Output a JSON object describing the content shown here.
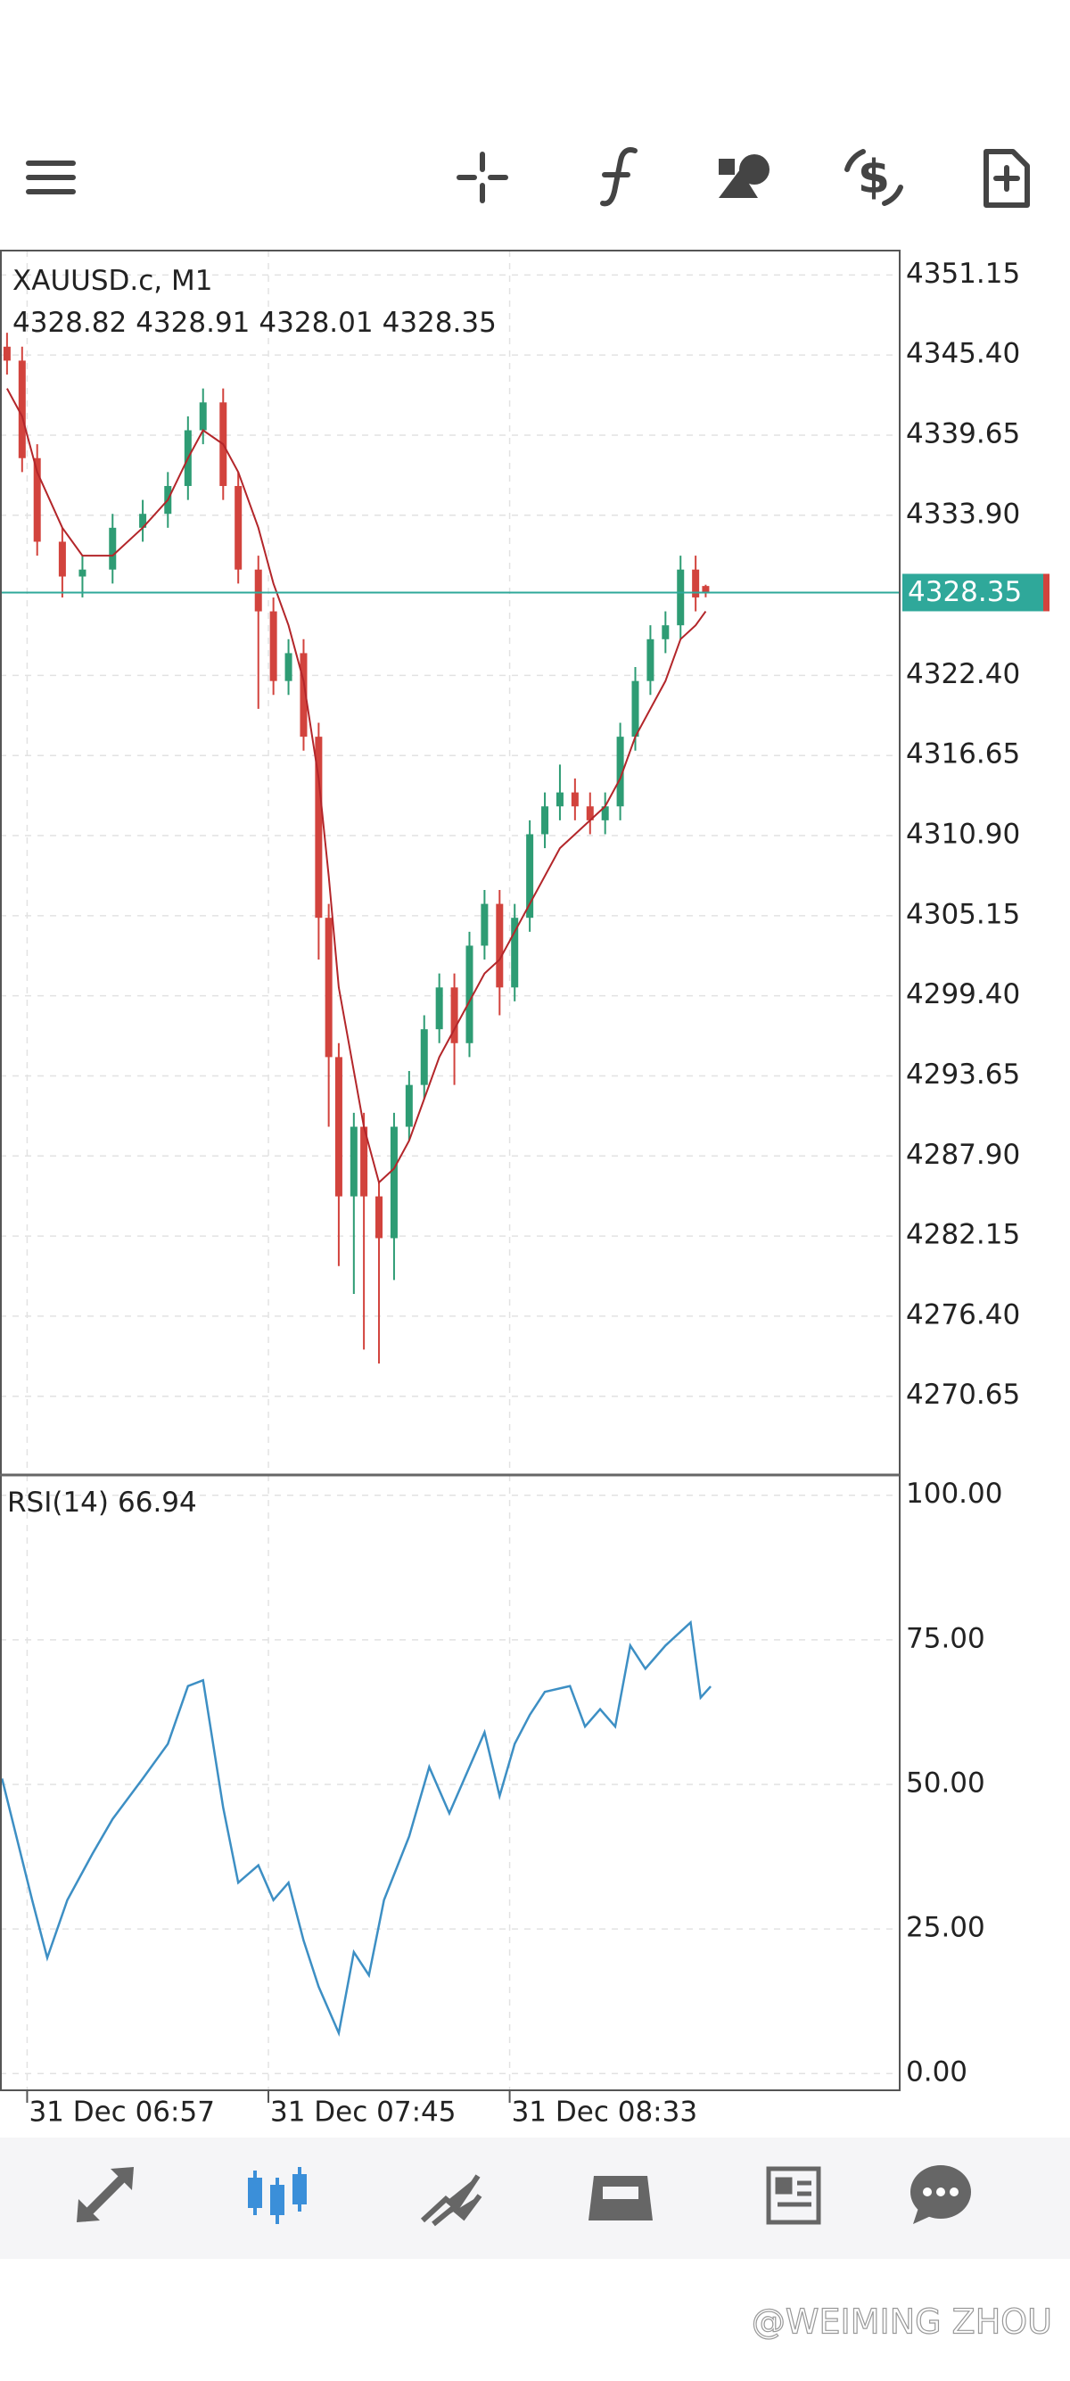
{
  "chart_data": [
    {
      "type": "candlestick",
      "title": "XAUUSD.c, M1",
      "x": [
        -4,
        -1,
        2,
        7,
        11,
        17,
        23,
        28,
        32,
        35,
        39,
        42,
        46,
        49,
        52,
        55,
        58,
        60,
        62,
        65,
        67,
        70,
        73,
        76,
        79,
        82,
        85,
        88,
        91,
        94,
        97,
        100,
        103,
        106,
        109,
        112,
        115,
        118,
        121,
        124,
        127,
        130,
        133,
        135
      ],
      "open": [
        4346,
        4345,
        4338,
        4332,
        4329.5,
        4330,
        4333,
        4334,
        4336,
        4340,
        4342,
        4336,
        4330,
        4327,
        4322,
        4324,
        4318,
        4305,
        4295,
        4285,
        4290,
        4285,
        4282,
        4290,
        4293,
        4297,
        4300,
        4296,
        4303,
        4306,
        4300,
        4305,
        4311,
        4313,
        4314,
        4313,
        4312,
        4313,
        4318,
        4322,
        4325,
        4326,
        4330,
        4328.82
      ],
      "high": [
        4347,
        4346,
        4339,
        4333,
        4331,
        4334,
        4335,
        4337,
        4341,
        4343,
        4343,
        4337,
        4331,
        4328,
        4325,
        4325,
        4319,
        4306,
        4296,
        4291,
        4291,
        4286,
        4291,
        4294,
        4298,
        4301,
        4301,
        4304,
        4307,
        4307,
        4306,
        4312,
        4314,
        4316,
        4315,
        4314,
        4314,
        4319,
        4323,
        4326,
        4327,
        4331,
        4331,
        4328.91
      ],
      "low": [
        4344,
        4337,
        4331,
        4328,
        4328,
        4329,
        4332,
        4333,
        4335,
        4339,
        4335,
        4329,
        4320,
        4321,
        4321,
        4317,
        4302,
        4290,
        4280,
        4278,
        4274,
        4273,
        4279,
        4289,
        4292,
        4296,
        4293,
        4295,
        4302,
        4298,
        4299,
        4304,
        4310,
        4312,
        4312,
        4311,
        4311,
        4312,
        4317,
        4321,
        4324,
        4325,
        4327,
        4328.01
      ],
      "close": [
        4345,
        4338,
        4332,
        4329.5,
        4330,
        4333,
        4334,
        4336,
        4340,
        4342,
        4336,
        4330,
        4327,
        4322,
        4324,
        4318,
        4305,
        4295,
        4285,
        4290,
        4285,
        4282,
        4290,
        4293,
        4297,
        4300,
        4296,
        4303,
        4306,
        4300,
        4305,
        4311,
        4313,
        4314,
        4313,
        4312,
        4313,
        4318,
        4322,
        4325,
        4326,
        4330,
        4328,
        4328.35
      ],
      "up_color": "#2e9c74",
      "down_color": "#d2433d",
      "ma_values": [
        4343,
        4341,
        4337,
        4333,
        4331,
        4331,
        4333,
        4335,
        4338,
        4340,
        4339,
        4337,
        4333,
        4329,
        4326,
        4322,
        4315,
        4308,
        4300,
        4294,
        4290,
        4286,
        4287,
        4289,
        4292,
        4295,
        4297,
        4299,
        4301,
        4302,
        4304,
        4306,
        4308,
        4310,
        4311,
        4312,
        4313,
        4315,
        4318,
        4320,
        4322,
        4325,
        4326,
        4327
      ],
      "ma_color": "#b3262a",
      "price_line_color": "#2fa89a",
      "xlim": [
        -5.4,
        173.6
      ],
      "ylim": [
        4265.0,
        4352.9
      ],
      "yticks": [
        {
          "value": 4351.15,
          "label": "4351.15"
        },
        {
          "value": 4345.4,
          "label": "4345.40"
        },
        {
          "value": 4339.65,
          "label": "4339.65"
        },
        {
          "value": 4333.9,
          "label": "4333.90"
        },
        {
          "value": 4322.4,
          "label": "4322.40"
        },
        {
          "value": 4316.65,
          "label": "4316.65"
        },
        {
          "value": 4310.9,
          "label": "4310.90"
        },
        {
          "value": 4305.15,
          "label": "4305.15"
        },
        {
          "value": 4299.4,
          "label": "4299.40"
        },
        {
          "value": 4293.65,
          "label": "4293.65"
        },
        {
          "value": 4287.9,
          "label": "4287.90"
        },
        {
          "value": 4282.15,
          "label": "4282.15"
        },
        {
          "value": 4276.4,
          "label": "4276.40"
        },
        {
          "value": 4270.65,
          "label": "4270.65"
        }
      ]
    },
    {
      "type": "line",
      "title": "RSI(14)",
      "x": [
        -5,
        1,
        4,
        8,
        13,
        17,
        23,
        28,
        32,
        35,
        39,
        42,
        46,
        49,
        52,
        55,
        58,
        62,
        65,
        68,
        71,
        76,
        80,
        84,
        88,
        91,
        94,
        97,
        100,
        103,
        108,
        111,
        114,
        117,
        120,
        123,
        127,
        132,
        134,
        136
      ],
      "values": [
        51,
        30,
        20,
        30,
        38,
        44,
        51,
        57,
        67,
        68,
        46,
        33,
        36,
        30,
        33,
        23,
        15,
        7,
        21,
        17,
        30,
        41,
        53,
        45,
        53,
        59,
        48,
        57,
        62,
        66,
        67,
        60,
        63,
        60,
        74,
        70,
        74,
        78,
        65,
        66.94
      ],
      "color": "#3d8fc4",
      "xlim": [
        -5.4,
        173.6
      ],
      "ylim": [
        -2.9,
        103.5
      ],
      "yticks": [
        {
          "value": 100,
          "label": "100.00"
        },
        {
          "value": 75,
          "label": "75.00"
        },
        {
          "value": 50,
          "label": "50.00"
        },
        {
          "value": 25,
          "label": "25.00"
        },
        {
          "value": 0,
          "label": "0.00"
        }
      ],
      "xticks": [
        {
          "value": 0,
          "label": "31 Dec 06:57"
        },
        {
          "value": 48,
          "label": "31 Dec 07:45"
        },
        {
          "value": 96,
          "label": "31 Dec 08:33"
        }
      ]
    }
  ],
  "watermark": "@WEIMING ZHOU"
}
